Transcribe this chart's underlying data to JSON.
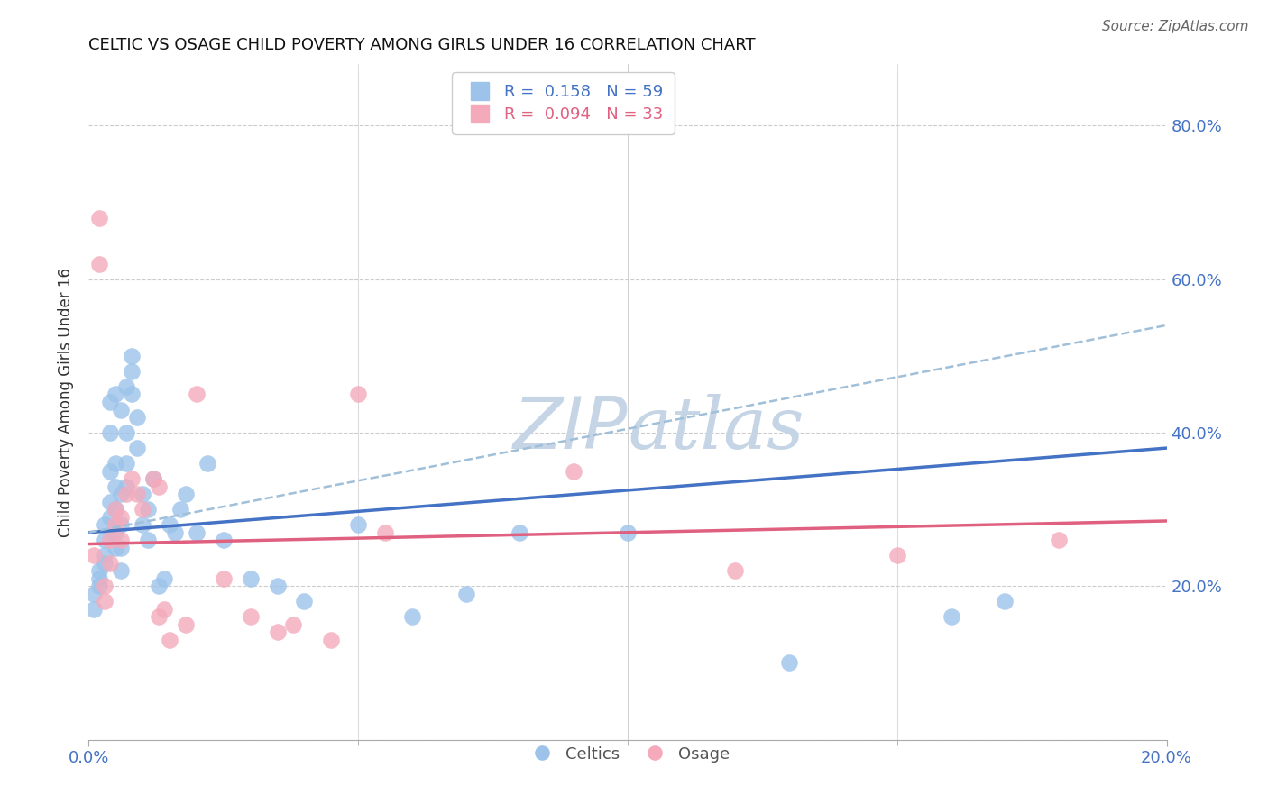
{
  "title": "CELTIC VS OSAGE CHILD POVERTY AMONG GIRLS UNDER 16 CORRELATION CHART",
  "source": "Source: ZipAtlas.com",
  "ylabel": "Child Poverty Among Girls Under 16",
  "x_min": 0.0,
  "x_max": 0.2,
  "y_min": 0.0,
  "y_max": 0.88,
  "right_yticks": [
    0.2,
    0.4,
    0.6,
    0.8
  ],
  "right_ytick_labels": [
    "20.0%",
    "40.0%",
    "60.0%",
    "80.0%"
  ],
  "grid_yticks": [
    0.0,
    0.2,
    0.4,
    0.6,
    0.8
  ],
  "celtics_R": "0.158",
  "celtics_N": "59",
  "osage_R": "0.094",
  "osage_N": "33",
  "celtics_color": "#9DC3EA",
  "celtics_line_color": "#4472C4",
  "osage_color": "#F4AABB",
  "osage_line_color": "#E06080",
  "dashed_line_color": "#A0BFD8",
  "watermark_color": "#C5D5E5",
  "background_color": "#FFFFFF",
  "celtics_x": [
    0.001,
    0.001,
    0.002,
    0.002,
    0.002,
    0.003,
    0.003,
    0.003,
    0.003,
    0.004,
    0.004,
    0.004,
    0.004,
    0.004,
    0.005,
    0.005,
    0.005,
    0.005,
    0.005,
    0.005,
    0.006,
    0.006,
    0.006,
    0.006,
    0.006,
    0.007,
    0.007,
    0.007,
    0.007,
    0.008,
    0.008,
    0.008,
    0.009,
    0.009,
    0.01,
    0.01,
    0.011,
    0.011,
    0.012,
    0.013,
    0.014,
    0.015,
    0.016,
    0.017,
    0.018,
    0.02,
    0.022,
    0.025,
    0.03,
    0.035,
    0.04,
    0.05,
    0.06,
    0.07,
    0.08,
    0.1,
    0.13,
    0.16,
    0.17
  ],
  "celtics_y": [
    0.17,
    0.19,
    0.21,
    0.22,
    0.2,
    0.24,
    0.23,
    0.26,
    0.28,
    0.29,
    0.31,
    0.35,
    0.4,
    0.44,
    0.25,
    0.27,
    0.3,
    0.33,
    0.36,
    0.45,
    0.22,
    0.25,
    0.28,
    0.32,
    0.43,
    0.33,
    0.36,
    0.4,
    0.46,
    0.45,
    0.48,
    0.5,
    0.38,
    0.42,
    0.28,
    0.32,
    0.26,
    0.3,
    0.34,
    0.2,
    0.21,
    0.28,
    0.27,
    0.3,
    0.32,
    0.27,
    0.36,
    0.26,
    0.21,
    0.2,
    0.18,
    0.28,
    0.16,
    0.19,
    0.27,
    0.27,
    0.1,
    0.16,
    0.18
  ],
  "osage_x": [
    0.001,
    0.002,
    0.002,
    0.003,
    0.003,
    0.004,
    0.004,
    0.005,
    0.005,
    0.006,
    0.006,
    0.007,
    0.008,
    0.009,
    0.01,
    0.012,
    0.013,
    0.013,
    0.014,
    0.015,
    0.018,
    0.02,
    0.025,
    0.03,
    0.035,
    0.038,
    0.045,
    0.05,
    0.055,
    0.09,
    0.12,
    0.15,
    0.18
  ],
  "osage_y": [
    0.24,
    0.68,
    0.62,
    0.2,
    0.18,
    0.23,
    0.26,
    0.28,
    0.3,
    0.26,
    0.29,
    0.32,
    0.34,
    0.32,
    0.3,
    0.34,
    0.33,
    0.16,
    0.17,
    0.13,
    0.15,
    0.45,
    0.21,
    0.16,
    0.14,
    0.15,
    0.13,
    0.45,
    0.27,
    0.35,
    0.22,
    0.24,
    0.26
  ],
  "celtics_trendline_x": [
    0.0,
    0.2
  ],
  "celtics_trendline_y": [
    0.27,
    0.38
  ],
  "osage_trendline_x": [
    0.0,
    0.2
  ],
  "osage_trendline_y": [
    0.255,
    0.285
  ],
  "dashed_trendline_x": [
    0.0,
    0.2
  ],
  "dashed_trendline_y": [
    0.27,
    0.54
  ],
  "xticks_positions": [
    0.0,
    0.2
  ],
  "xticks_labels": [
    "0.0%",
    "20.0%"
  ],
  "xtick_minor_positions": [
    0.05,
    0.1,
    0.15
  ],
  "title_fontsize": 13,
  "axis_label_fontsize": 12,
  "tick_fontsize": 13,
  "legend_fontsize": 13
}
